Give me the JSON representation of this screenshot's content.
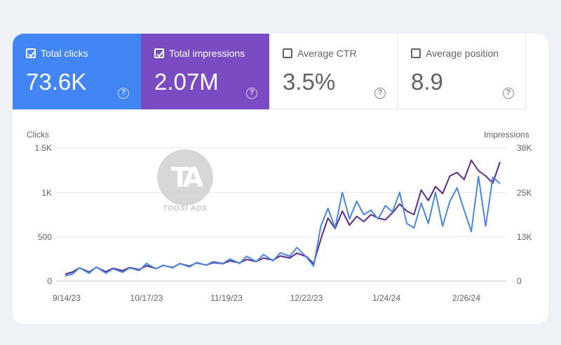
{
  "metrics": [
    {
      "label": "Total clicks",
      "value": "73.6K",
      "checked": true
    },
    {
      "label": "Total impressions",
      "value": "2.07M",
      "checked": true
    },
    {
      "label": "Average CTR",
      "value": "3.5%",
      "checked": false
    },
    {
      "label": "Average position",
      "value": "8.9",
      "checked": false
    }
  ],
  "watermark": {
    "text": "TOOSI ADS"
  },
  "colors": {
    "clicks": "#4a86e0",
    "impressions": "#5b2c8f",
    "clicks_card": "#4285f4",
    "impressions_card": "#7b4bc4"
  },
  "chart_data": {
    "type": "line",
    "ylabel_left": "Clicks",
    "ylabel_right": "Impressions",
    "y_left_ticks": [
      "1.5K",
      "1K",
      "500",
      "0"
    ],
    "y_right_ticks": [
      "38K",
      "25K",
      "13K",
      "0"
    ],
    "x_ticks": [
      "9/14/23",
      "10/17/23",
      "11/19/23",
      "12/22/23",
      "1/24/24",
      "2/26/24"
    ],
    "y_left_range": [
      0,
      1500
    ],
    "y_right_range": [
      0,
      38000
    ],
    "x_range": [
      "2023-09-14",
      "2024-03-14"
    ],
    "grid": true,
    "series": [
      {
        "name": "Clicks",
        "axis": "left",
        "color": "#4a86e0",
        "x": [
          "2023-09-14",
          "2023-09-17",
          "2023-09-20",
          "2023-09-24",
          "2023-09-27",
          "2023-10-01",
          "2023-10-04",
          "2023-10-08",
          "2023-10-11",
          "2023-10-15",
          "2023-10-18",
          "2023-10-22",
          "2023-10-25",
          "2023-10-29",
          "2023-11-01",
          "2023-11-05",
          "2023-11-08",
          "2023-11-12",
          "2023-11-15",
          "2023-11-19",
          "2023-11-22",
          "2023-11-26",
          "2023-11-29",
          "2023-12-03",
          "2023-12-06",
          "2023-12-10",
          "2023-12-13",
          "2023-12-17",
          "2023-12-20",
          "2023-12-24",
          "2023-12-27",
          "2023-12-30",
          "2024-01-02",
          "2024-01-05",
          "2024-01-08",
          "2024-01-11",
          "2024-01-14",
          "2024-01-17",
          "2024-01-20",
          "2024-01-23",
          "2024-01-26",
          "2024-01-29",
          "2024-02-01",
          "2024-02-04",
          "2024-02-07",
          "2024-02-10",
          "2024-02-13",
          "2024-02-16",
          "2024-02-19",
          "2024-02-22",
          "2024-02-25",
          "2024-02-28",
          "2024-03-02",
          "2024-03-05",
          "2024-03-08",
          "2024-03-11",
          "2024-03-14"
        ],
        "values": [
          60,
          80,
          150,
          90,
          160,
          90,
          140,
          100,
          150,
          120,
          200,
          140,
          180,
          150,
          200,
          160,
          210,
          180,
          220,
          200,
          250,
          200,
          280,
          220,
          300,
          230,
          320,
          280,
          380,
          270,
          170,
          620,
          820,
          600,
          1000,
          700,
          900,
          750,
          800,
          700,
          850,
          780,
          1000,
          650,
          600,
          880,
          650,
          1000,
          620,
          900,
          1050,
          800,
          560,
          1180,
          620,
          1170,
          1100
        ]
      },
      {
        "name": "Impressions",
        "axis": "right",
        "color": "#5b2c8f",
        "x": [
          "2023-09-14",
          "2023-09-17",
          "2023-09-20",
          "2023-09-24",
          "2023-09-27",
          "2023-10-01",
          "2023-10-04",
          "2023-10-08",
          "2023-10-11",
          "2023-10-15",
          "2023-10-18",
          "2023-10-22",
          "2023-10-25",
          "2023-10-29",
          "2023-11-01",
          "2023-11-05",
          "2023-11-08",
          "2023-11-12",
          "2023-11-15",
          "2023-11-19",
          "2023-11-22",
          "2023-11-26",
          "2023-11-29",
          "2023-12-03",
          "2023-12-06",
          "2023-12-10",
          "2023-12-13",
          "2023-12-17",
          "2023-12-20",
          "2023-12-24",
          "2023-12-27",
          "2023-12-30",
          "2024-01-02",
          "2024-01-05",
          "2024-01-08",
          "2024-01-11",
          "2024-01-14",
          "2024-01-17",
          "2024-01-20",
          "2024-01-23",
          "2024-01-26",
          "2024-01-29",
          "2024-02-01",
          "2024-02-04",
          "2024-02-07",
          "2024-02-10",
          "2024-02-13",
          "2024-02-16",
          "2024-02-19",
          "2024-02-22",
          "2024-02-25",
          "2024-02-28",
          "2024-03-02",
          "2024-03-05",
          "2024-03-08",
          "2024-03-11",
          "2024-03-14"
        ],
        "values": [
          2000,
          2600,
          3800,
          2600,
          4000,
          2700,
          3700,
          3000,
          3900,
          3300,
          4400,
          3600,
          4500,
          3900,
          5000,
          4300,
          5200,
          4600,
          5300,
          5000,
          5800,
          5200,
          6200,
          5600,
          6600,
          6000,
          7200,
          6600,
          8000,
          7000,
          5000,
          12000,
          18000,
          15000,
          20000,
          16000,
          18500,
          17000,
          19000,
          18000,
          17500,
          19500,
          22000,
          20000,
          19000,
          26000,
          23000,
          27000,
          25000,
          30000,
          31000,
          29000,
          34500,
          31500,
          30000,
          28000,
          34000
        ]
      }
    ]
  }
}
